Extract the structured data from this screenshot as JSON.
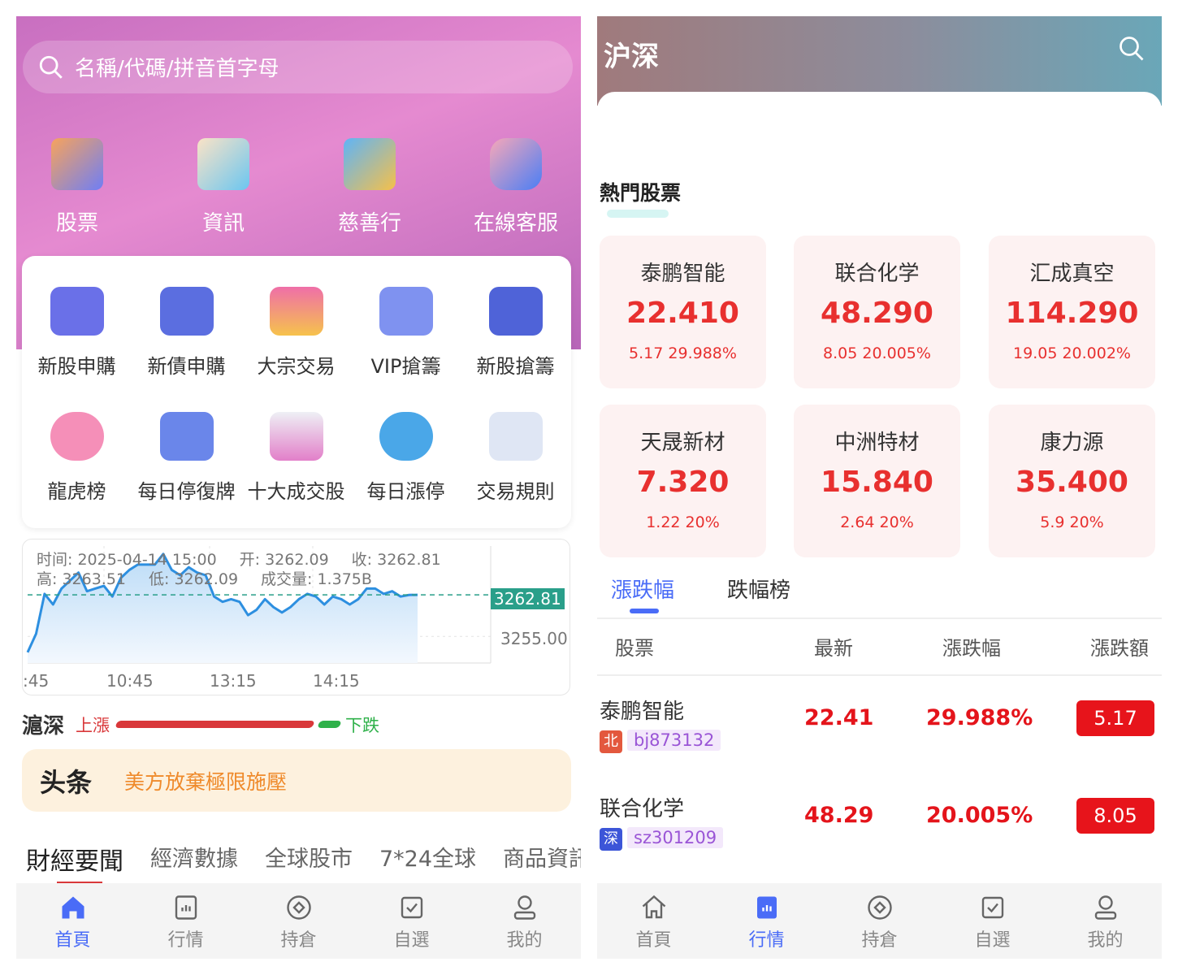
{
  "home": {
    "search_placeholder": "名稱/代碼/拼音首字母",
    "quick": [
      {
        "label": "股票",
        "icon": "bar-chart-icon"
      },
      {
        "label": "資訊",
        "icon": "news-board-icon"
      },
      {
        "label": "慈善行",
        "icon": "bank-icon"
      },
      {
        "label": "在線客服",
        "icon": "chat-bubbles-icon"
      }
    ],
    "grid": [
      {
        "label": "新股申購",
        "icon": "wallet-icon"
      },
      {
        "label": "新債申購",
        "icon": "card-icon"
      },
      {
        "label": "大宗交易",
        "icon": "pie-icon"
      },
      {
        "label": "VIP搶籌",
        "icon": "vip-card-icon"
      },
      {
        "label": "新股搶籌",
        "icon": "safe-icon"
      },
      {
        "label": "龍虎榜",
        "icon": "piggy-bank-icon"
      },
      {
        "label": "每日停復牌",
        "icon": "discount-tag-icon"
      },
      {
        "label": "十大成交股",
        "icon": "chart-image-icon"
      },
      {
        "label": "每日漲停",
        "icon": "alarm-clock-icon"
      },
      {
        "label": "交易規則",
        "icon": "receipt-icon"
      }
    ],
    "chart": {
      "info_line1": [
        "时间: 2025-04-14 15:00",
        "开: 3262.09",
        "收: 3262.81"
      ],
      "info_line2": [
        "高: 3263.51",
        "低: 3262.09",
        "成交量: 1.375B"
      ],
      "last_label": "3262.81",
      "y_tick": "3255.00",
      "x_ticks": [
        ":45",
        "10:45",
        "13:15",
        "14:15"
      ],
      "accent": "#2a9f8a",
      "line_color": "#2d8fe0",
      "chart_data": {
        "type": "area",
        "ylim": [
          3250,
          3272
        ],
        "reference": 3262.81,
        "values": [
          3252,
          3255.5,
          3263,
          3261,
          3264,
          3265.5,
          3267,
          3263.5,
          3264,
          3264.5,
          3262.5,
          3266,
          3267.5,
          3268.5,
          3268.5,
          3268.5,
          3270.5,
          3267.5,
          3266.5,
          3268,
          3267,
          3266.5,
          3262.5,
          3261.5,
          3262,
          3261.5,
          3259,
          3260,
          3262,
          3260.5,
          3259.5,
          3260.5,
          3262,
          3263,
          3262.5,
          3261,
          3262.5,
          3262,
          3261,
          3262,
          3264,
          3264,
          3263,
          3263.5,
          3262.5,
          3262.8,
          3262.81
        ]
      }
    },
    "market": {
      "title": "滬深",
      "up": "上漲",
      "down": "下跌",
      "up_ratio": 0.9
    },
    "headline": {
      "logo": "头条",
      "text": "美方放棄極限施壓"
    },
    "tabs": [
      "財經要聞",
      "經濟數據",
      "全球股市",
      "7*24全球",
      "商品資訊"
    ],
    "nav": [
      "首頁",
      "行情",
      "持倉",
      "自選",
      "我的"
    ]
  },
  "market": {
    "title": "沪深",
    "section": "熱門股票",
    "hot": [
      {
        "name": "泰鹏智能",
        "price": "22.410",
        "change": "5.17 29.988%"
      },
      {
        "name": "联合化学",
        "price": "48.290",
        "change": "8.05 20.005%"
      },
      {
        "name": "汇成真空",
        "price": "114.290",
        "change": "19.05 20.002%"
      },
      {
        "name": "天晟新材",
        "price": "7.320",
        "change": "1.22 20%"
      },
      {
        "name": "中洲特材",
        "price": "15.840",
        "change": "2.64 20%"
      },
      {
        "name": "康力源",
        "price": "35.400",
        "change": "5.9 20%"
      }
    ],
    "tabs": [
      "漲跌幅",
      "跌幅榜"
    ],
    "columns": [
      "股票",
      "最新",
      "漲跌幅",
      "漲跌額"
    ],
    "rows": [
      {
        "name": "泰鹏智能",
        "exchange": "北",
        "code": "bj873132",
        "price": "22.41",
        "pct": "29.988%",
        "amt": "5.17"
      },
      {
        "name": "联合化学",
        "exchange": "深",
        "code": "sz301209",
        "price": "48.29",
        "pct": "20.005%",
        "amt": "8.05"
      }
    ],
    "nav": [
      "首頁",
      "行情",
      "持倉",
      "自選",
      "我的"
    ]
  }
}
